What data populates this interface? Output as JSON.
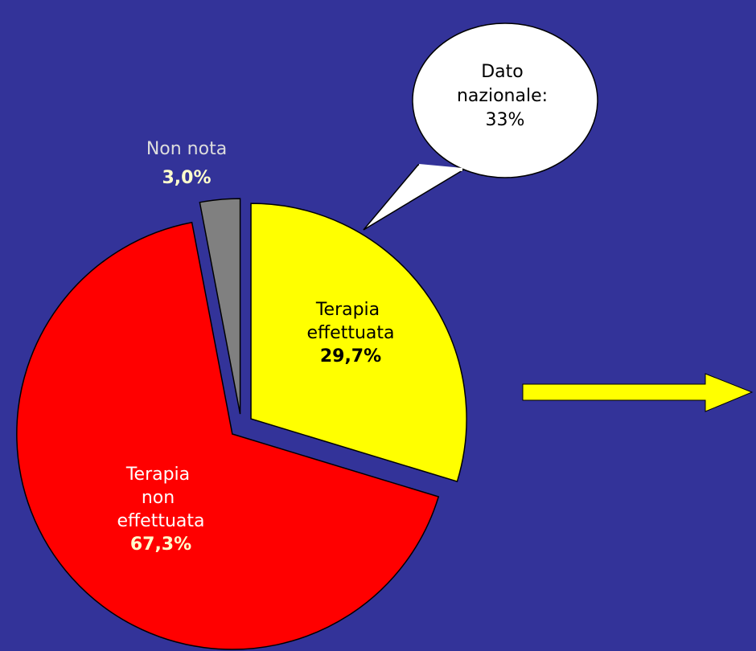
{
  "chart_data": {
    "type": "pie",
    "categories": [
      "Terapia effettuata",
      "Terapia non effettuata",
      "Non nota"
    ],
    "values": [
      29.7,
      67.3,
      3.0
    ],
    "value_labels": [
      "29,7%",
      "67,3%",
      "3,0%"
    ],
    "colors": [
      "#ffff00",
      "#ff0000",
      "#808080"
    ],
    "annotation": "Dato nazionale: 33%"
  }
}
